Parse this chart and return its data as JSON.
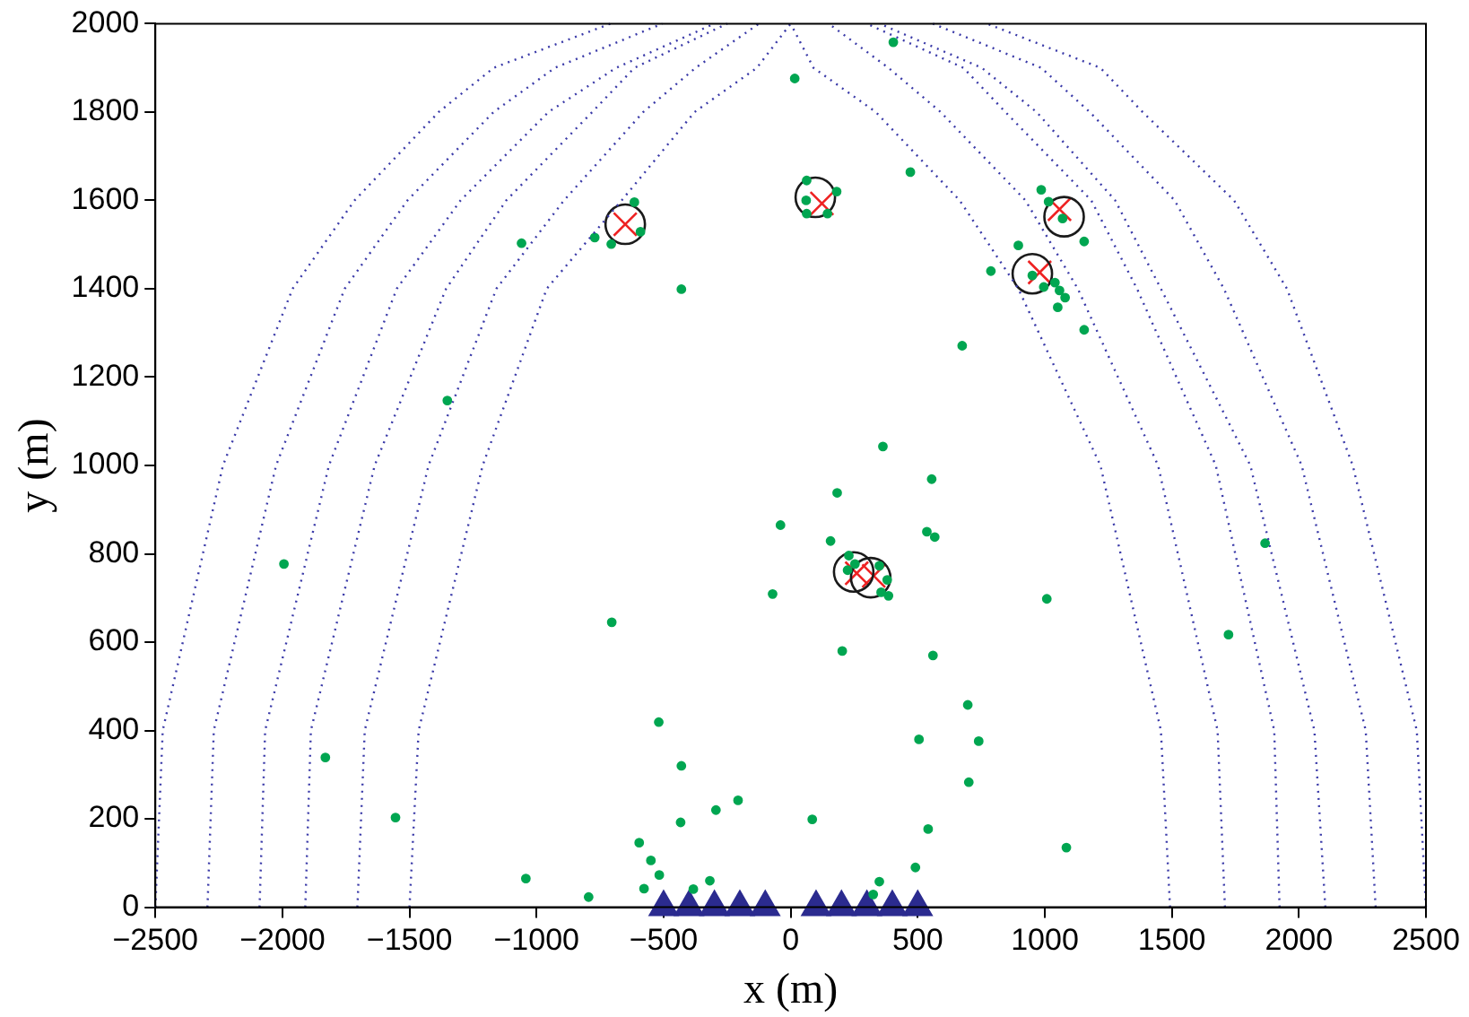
{
  "chart_data": {
    "type": "scatter",
    "xlabel": "x (m)",
    "ylabel": "y (m)",
    "xlim": [
      -2500,
      2500
    ],
    "ylim": [
      0,
      2000
    ],
    "xticks": [
      -2500,
      -2000,
      -1500,
      -1000,
      -500,
      0,
      500,
      1000,
      1500,
      2000,
      2500
    ],
    "yticks": [
      0,
      200,
      400,
      600,
      800,
      1000,
      1200,
      1400,
      1600,
      1800,
      2000
    ],
    "grid": false,
    "legend": false,
    "series": [
      {
        "type": "line",
        "color": "#3a3aa8",
        "line_style": "dotted",
        "marker": "none",
        "x": [
          -2500,
          -2471,
          -2234,
          -1960,
          -1716,
          -1385,
          -1169,
          -709
        ],
        "values": [
          0,
          400,
          1000,
          1400,
          1600,
          1800,
          1900,
          2000
        ]
      },
      {
        "type": "line",
        "color": "#3a3aa8",
        "line_style": "dotted",
        "marker": "none",
        "x": [
          -2295,
          -2270,
          -2025,
          -1755,
          -1508,
          -1169,
          -928,
          -505
        ],
        "values": [
          0,
          400,
          1000,
          1400,
          1600,
          1800,
          1900,
          2000
        ]
      },
      {
        "type": "line",
        "color": "#3a3aa8",
        "line_style": "dotted",
        "marker": "none",
        "x": [
          -2090,
          -2068,
          -1817,
          -1550,
          -1299,
          -953,
          -687,
          -300
        ],
        "values": [
          0,
          400,
          1000,
          1400,
          1600,
          1800,
          1900,
          2000
        ]
      },
      {
        "type": "line",
        "color": "#3a3aa8",
        "line_style": "dotted",
        "marker": "none",
        "x": [
          -1910,
          -1888,
          -1637,
          -1356,
          -1119,
          -781,
          -615,
          -250
        ],
        "values": [
          0,
          400,
          1000,
          1400,
          1600,
          1800,
          1900,
          2000
        ]
      },
      {
        "type": "line",
        "color": "#3a3aa8",
        "line_style": "dotted",
        "marker": "none",
        "x": [
          -1705,
          -1676,
          -1425,
          -1158,
          -892,
          -580,
          -374,
          -125
        ],
        "values": [
          0,
          400,
          1000,
          1400,
          1600,
          1800,
          1900,
          2000
        ]
      },
      {
        "type": "line",
        "color": "#3a3aa8",
        "line_style": "dotted",
        "marker": "none",
        "x": [
          -1500,
          -1464,
          -1212,
          -960,
          -665,
          -378,
          -133,
          0
        ],
        "values": [
          0,
          400,
          1000,
          1400,
          1600,
          1800,
          1900,
          2000
        ]
      },
      {
        "type": "line",
        "color": "#3a3aa8",
        "line_style": "dotted",
        "marker": "none",
        "x": [
          1493,
          1457,
          1219,
          896,
          665,
          335,
          90,
          0
        ],
        "values": [
          0,
          400,
          1000,
          1400,
          1600,
          1800,
          1900,
          2000
        ]
      },
      {
        "type": "line",
        "color": "#3a3aa8",
        "line_style": "dotted",
        "marker": "none",
        "x": [
          1709,
          1680,
          1446,
          1130,
          924,
          590,
          385,
          150
        ],
        "values": [
          0,
          400,
          1000,
          1400,
          1600,
          1800,
          1900,
          2000
        ]
      },
      {
        "type": "line",
        "color": "#3a3aa8",
        "line_style": "dotted",
        "marker": "none",
        "x": [
          1924,
          1903,
          1673,
          1363,
          1183,
          845,
          680,
          300
        ],
        "values": [
          0,
          400,
          1000,
          1400,
          1600,
          1800,
          1900,
          2000
        ]
      },
      {
        "type": "line",
        "color": "#3a3aa8",
        "line_style": "dotted",
        "marker": "none",
        "x": [
          2104,
          2061,
          1809,
          1457,
          1277,
          968,
          752,
          350
        ],
        "values": [
          0,
          400,
          1000,
          1400,
          1600,
          1800,
          1900,
          2000
        ]
      },
      {
        "type": "line",
        "color": "#3a3aa8",
        "line_style": "dotted",
        "marker": "none",
        "x": [
          2302,
          2263,
          2011,
          1705,
          1511,
          1177,
          986,
          560
        ],
        "values": [
          0,
          400,
          1000,
          1400,
          1600,
          1800,
          1900,
          2000
        ]
      },
      {
        "type": "line",
        "color": "#3a3aa8",
        "line_style": "dotted",
        "marker": "none",
        "x": [
          2500,
          2464,
          2212,
          1953,
          1745,
          1385,
          1219,
          773
        ],
        "values": [
          0,
          400,
          1000,
          1400,
          1600,
          1800,
          1900,
          2000
        ]
      },
      {
        "color": "#00a651",
        "x": [
          -615,
          -771,
          -706,
          -1059,
          -591,
          -430,
          -1351,
          404,
          16,
          471,
          63,
          181,
          61,
          145,
          63,
          986,
          1015,
          1070,
          1155,
          896,
          788,
          951,
          1040,
          1058,
          1080,
          1051,
          1155,
          996,
          675,
          363,
          555,
          183,
          -1994,
          -1831,
          -1555,
          -1042,
          -795,
          -704,
          -519,
          -430,
          -433,
          -596,
          -550,
          -517,
          -577,
          -383,
          -318,
          -294,
          -207,
          -71,
          -40,
          157,
          536,
          567,
          1008,
          1867,
          1723,
          203,
          560,
          697,
          740,
          505,
          701,
          85,
          541,
          1085,
          491,
          349,
          325,
          229,
          253,
          349,
          380,
          385,
          356,
          224
        ],
        "values": [
          1596,
          1516,
          1501,
          1503,
          1529,
          1399,
          1147,
          1958,
          1876,
          1664,
          1645,
          1620,
          1600,
          1570,
          1570,
          1624,
          1597,
          1559,
          1507,
          1498,
          1440,
          1430,
          1414,
          1396,
          1380,
          1358,
          1307,
          1404,
          1271,
          1043,
          969,
          938,
          777,
          339,
          203,
          65,
          23,
          645,
          419,
          320,
          192,
          146,
          106,
          73,
          42,
          41,
          60,
          220,
          242,
          709,
          865,
          829,
          850,
          838,
          698,
          824,
          617,
          580,
          570,
          458,
          376,
          380,
          283,
          199,
          177,
          135,
          90,
          58,
          29,
          796,
          777,
          773,
          741,
          705,
          713,
          763
        ]
      },
      {
        "color": "#1a1a1a",
        "marker": "circle",
        "x": [
          -651,
          97,
          1076,
          951,
          248,
          315
        ],
        "values": [
          1546,
          1607,
          1563,
          1434,
          759,
          746
        ]
      },
      {
        "color": "#ee2222",
        "marker": "cross",
        "x": [
          -651,
          123,
          1058,
          980,
          260,
          327
        ],
        "values": [
          1546,
          1593,
          1580,
          1437,
          756,
          750
        ]
      },
      {
        "color": "#2b2b8f",
        "marker": "triangle",
        "x": [
          -500,
          -400,
          -300,
          -200,
          -100,
          100,
          200,
          300,
          400,
          500
        ],
        "values": [
          0,
          0,
          0,
          0,
          0,
          0,
          0,
          0,
          0,
          0
        ]
      }
    ]
  }
}
